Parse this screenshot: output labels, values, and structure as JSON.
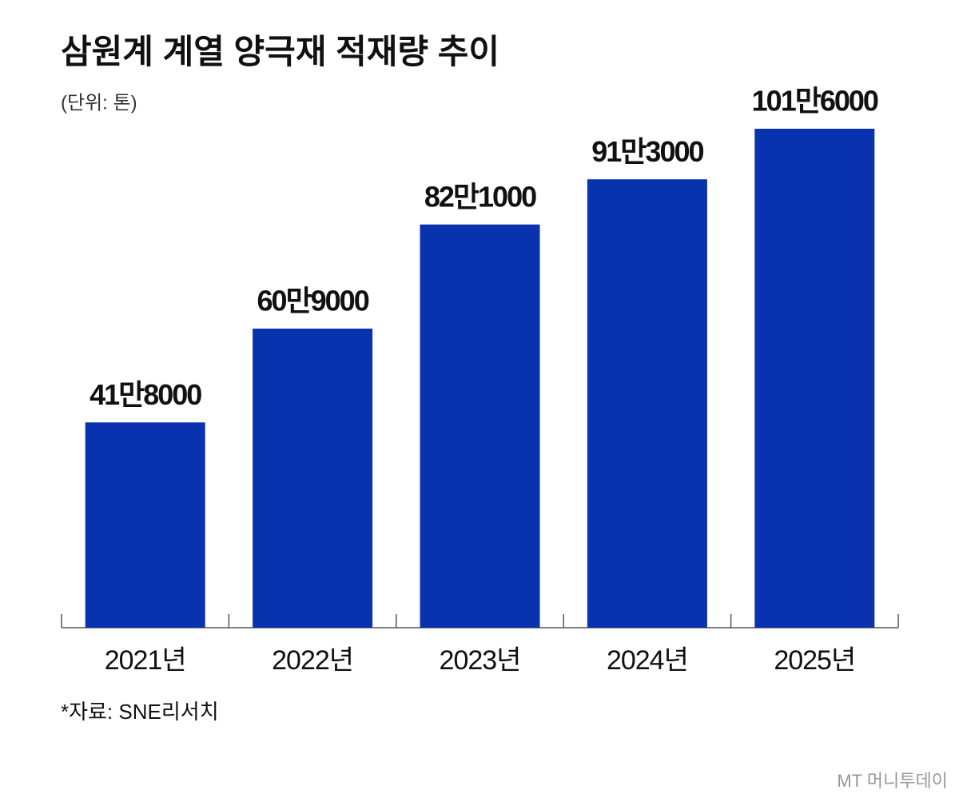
{
  "chart_data": {
    "type": "bar",
    "title": "삼원계 계열 양극재 적재량 추이",
    "subtitle": "(단위: 톤)",
    "categories": [
      "2021년",
      "2022년",
      "2023년",
      "2024년",
      "2025년"
    ],
    "values": [
      418000,
      609000,
      821000,
      913000,
      1016000
    ],
    "value_labels": [
      "41만8000",
      "60만9000",
      "82만1000",
      "91만3000",
      "101만6000"
    ],
    "color": "#0832ae",
    "source": "*자료: SNE리서치",
    "watermark": "MT 머니투데이"
  }
}
